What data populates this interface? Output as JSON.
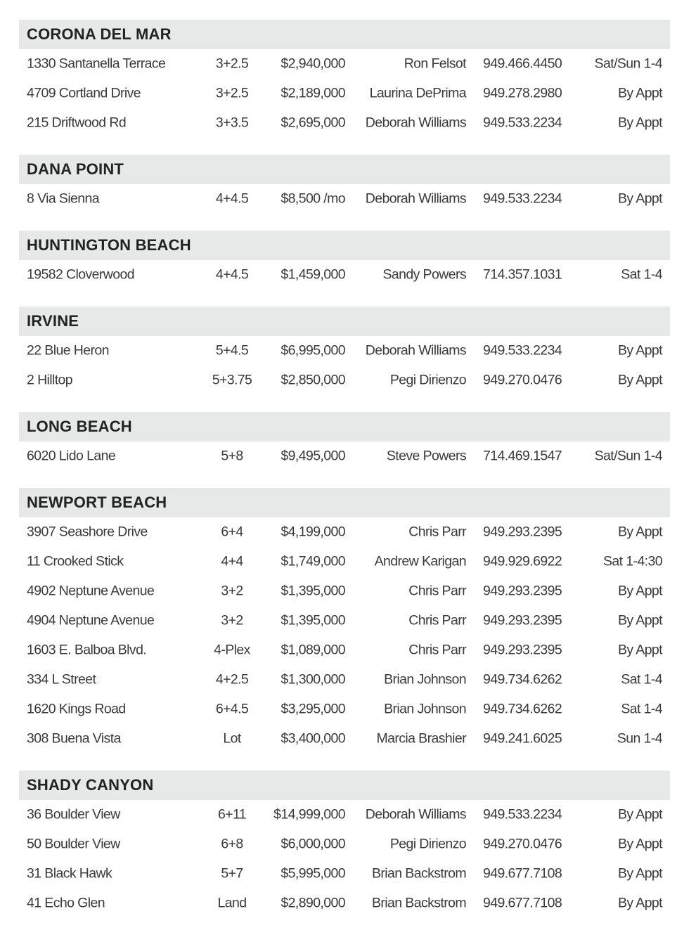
{
  "colors": {
    "header_bg": "#e6e9e8",
    "text": "#3a3a3a"
  },
  "sections": [
    {
      "name": "CORONA DEL MAR",
      "rows": [
        [
          "1330 Santanella Terrace",
          "3+2.5",
          "$2,940,000",
          "Ron Felsot",
          "949.466.4450",
          "Sat/Sun 1-4"
        ],
        [
          "4709 Cortland Drive",
          "3+2.5",
          "$2,189,000",
          "Laurina DePrima",
          "949.278.2980",
          "By Appt"
        ],
        [
          "215 Driftwood Rd",
          "3+3.5",
          "$2,695,000",
          "Deborah Williams",
          "949.533.2234",
          "By Appt"
        ]
      ]
    },
    {
      "name": "DANA POINT",
      "rows": [
        [
          "8 Via Sienna",
          "4+4.5",
          "$8,500 /mo",
          "Deborah Williams",
          "949.533.2234",
          "By Appt"
        ]
      ]
    },
    {
      "name": "HUNTINGTON BEACH",
      "rows": [
        [
          "19582 Cloverwood",
          "4+4.5",
          "$1,459,000",
          "Sandy Powers",
          "714.357.1031",
          "Sat 1-4"
        ]
      ]
    },
    {
      "name": "IRVINE",
      "rows": [
        [
          "22 Blue Heron",
          "5+4.5",
          "$6,995,000",
          "Deborah Williams",
          "949.533.2234",
          "By Appt"
        ],
        [
          "2 Hilltop",
          "5+3.75",
          "$2,850,000",
          "Pegi Dirienzo",
          "949.270.0476",
          "By Appt"
        ]
      ]
    },
    {
      "name": "LONG BEACH",
      "rows": [
        [
          "6020 Lido Lane",
          "5+8",
          "$9,495,000",
          "Steve Powers",
          "714.469.1547",
          "Sat/Sun 1-4"
        ]
      ]
    },
    {
      "name": "NEWPORT BEACH",
      "rows": [
        [
          "3907 Seashore Drive",
          "6+4",
          "$4,199,000",
          "Chris Parr",
          "949.293.2395",
          "By Appt"
        ],
        [
          "11 Crooked Stick",
          "4+4",
          "$1,749,000",
          "Andrew Karigan",
          "949.929.6922",
          "Sat 1-4:30"
        ],
        [
          "4902 Neptune Avenue",
          "3+2",
          "$1,395,000",
          "Chris Parr",
          "949.293.2395",
          "By Appt"
        ],
        [
          "4904 Neptune Avenue",
          "3+2",
          "$1,395,000",
          "Chris Parr",
          "949.293.2395",
          "By Appt"
        ],
        [
          "1603 E. Balboa Blvd.",
          "4-Plex",
          "$1,089,000",
          "Chris Parr",
          "949.293.2395",
          "By Appt"
        ],
        [
          "334 L Street",
          "4+2.5",
          "$1,300,000",
          "Brian Johnson",
          "949.734.6262",
          "Sat 1-4"
        ],
        [
          "1620 Kings Road",
          "6+4.5",
          "$3,295,000",
          "Brian Johnson",
          "949.734.6262",
          "Sat 1-4"
        ],
        [
          "308 Buena Vista",
          "Lot",
          "$3,400,000",
          "Marcia Brashier",
          "949.241.6025",
          "Sun 1-4"
        ]
      ]
    },
    {
      "name": "SHADY CANYON",
      "rows": [
        [
          "36 Boulder View",
          "6+11",
          "$14,999,000",
          "Deborah Williams",
          "949.533.2234",
          "By Appt"
        ],
        [
          "50 Boulder View",
          "6+8",
          "$6,000,000",
          "Pegi Dirienzo",
          "949.270.0476",
          "By Appt"
        ],
        [
          "31 Black Hawk",
          "5+7",
          "$5,995,000",
          "Brian Backstrom",
          "949.677.7108",
          "By Appt"
        ],
        [
          "41 Echo Glen",
          "Land",
          "$2,890,000",
          "Brian Backstrom",
          "949.677.7108",
          "By Appt"
        ]
      ]
    }
  ]
}
